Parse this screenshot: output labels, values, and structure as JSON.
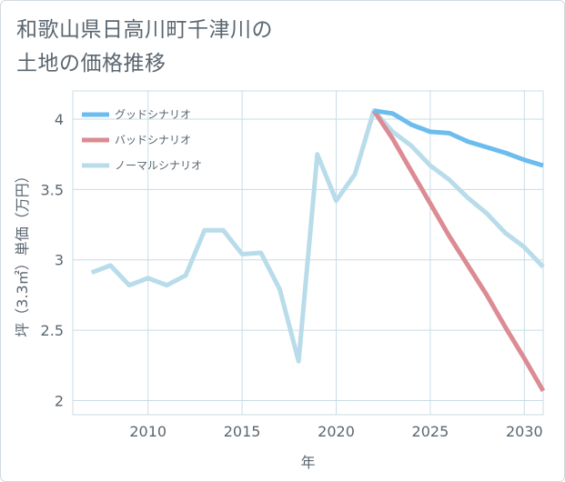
{
  "title_line1": "和歌山県日高川町千津川の",
  "title_line2": "土地の価格推移",
  "colors": {
    "good": "#6cbcee",
    "bad": "#dc8b93",
    "normal": "#b9dcea",
    "grid": "#c9dce6",
    "text": "#5a6670"
  },
  "chart_data": {
    "type": "line",
    "title": "和歌山県日高川町千津川の土地の価格推移",
    "xlabel": "年",
    "ylabel": "坪（3.3㎡）単価（万円）",
    "xlim": [
      2006,
      2031
    ],
    "ylim": [
      1.9,
      4.2
    ],
    "xticks": [
      2010,
      2015,
      2020,
      2025,
      2030
    ],
    "yticks": [
      2,
      2.5,
      3,
      3.5,
      4
    ],
    "xtick_labels": [
      "2010",
      "2015",
      "2020",
      "2025",
      "2030"
    ],
    "ytick_labels": [
      "2",
      "2.5",
      "3",
      "3.5",
      "4"
    ],
    "legend_position": "top-left",
    "series": [
      {
        "key": "good",
        "name": "グッドシナリオ",
        "x": [
          2022,
          2023,
          2024,
          2025,
          2026,
          2027,
          2028,
          2029,
          2030,
          2031
        ],
        "values": [
          4.06,
          4.04,
          3.96,
          3.91,
          3.9,
          3.84,
          3.8,
          3.76,
          3.71,
          3.67
        ]
      },
      {
        "key": "bad",
        "name": "バッドシナリオ",
        "x": [
          2022,
          2023,
          2024,
          2025,
          2026,
          2027,
          2028,
          2029,
          2030,
          2031
        ],
        "values": [
          4.06,
          3.86,
          3.63,
          3.4,
          3.17,
          2.96,
          2.75,
          2.52,
          2.3,
          2.07
        ]
      },
      {
        "key": "normal",
        "name": "ノーマルシナリオ",
        "x": [
          2007,
          2008,
          2009,
          2010,
          2011,
          2012,
          2013,
          2014,
          2015,
          2016,
          2017,
          2018,
          2019,
          2020,
          2021,
          2022,
          2023,
          2024,
          2025,
          2026,
          2027,
          2028,
          2029,
          2030,
          2031
        ],
        "values": [
          2.91,
          2.96,
          2.82,
          2.87,
          2.82,
          2.89,
          3.21,
          3.21,
          3.04,
          3.05,
          2.79,
          2.28,
          3.75,
          3.42,
          3.61,
          4.06,
          3.91,
          3.81,
          3.67,
          3.57,
          3.44,
          3.33,
          3.19,
          3.09,
          2.95
        ]
      }
    ]
  }
}
